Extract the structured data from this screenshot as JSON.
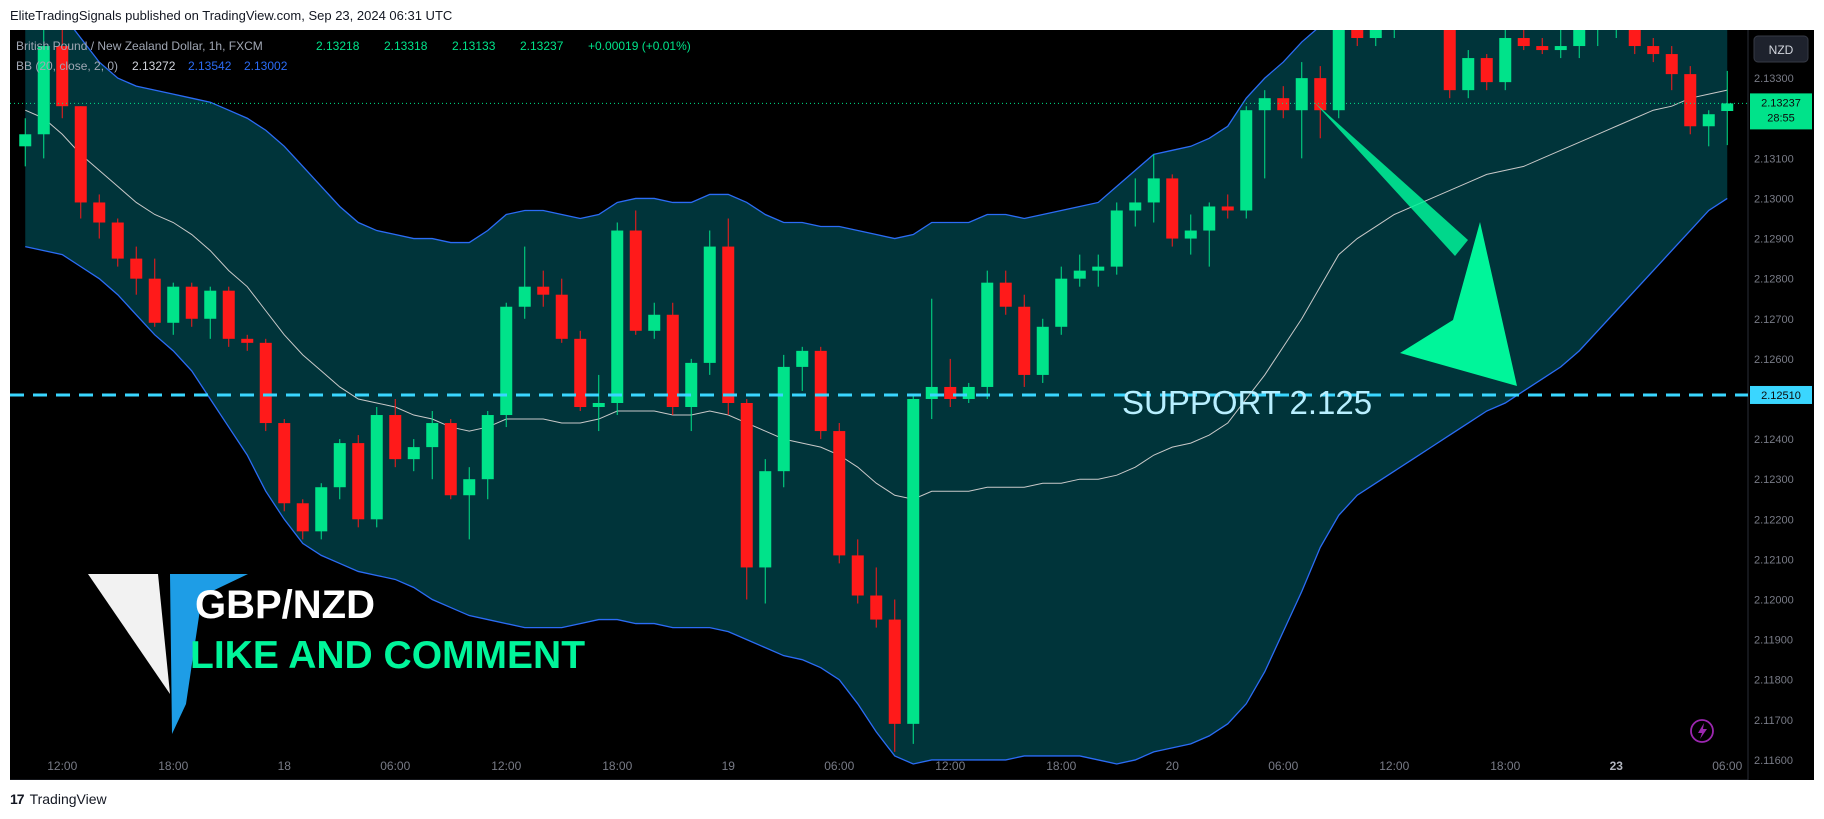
{
  "header": {
    "publish_line": "EliteTradingSignals published on TradingView.com, Sep 23, 2024 06:31 UTC"
  },
  "footer": {
    "brand": "TradingView"
  },
  "legend": {
    "symbol_line": "British Pound / New Zealand Dollar, 1h, FXCM",
    "o": "2.13218",
    "h": "2.13318",
    "l": "2.13133",
    "c": "2.13237",
    "change": "+0.00019 (+0.01%)",
    "bb_label": "BB (20, close, 2, 0)",
    "bb_basis": "2.13272",
    "bb_upper": "2.13542",
    "bb_lower": "2.13002"
  },
  "currency_button": "NZD",
  "price_tag": {
    "price": "2.13237",
    "countdown": "28:55"
  },
  "support_tag": "2.12510",
  "annotations": {
    "support_text": "SUPPORT  2.125",
    "pair_text": "GBP/NZD",
    "cta_text": "LIKE AND COMMENT"
  },
  "colors": {
    "background": "#000000",
    "band_fill": "#00343a",
    "band_line": "#2b6cf5",
    "basis_line": "#c9c9c9",
    "up": "#00e38a",
    "down": "#ff1a1a",
    "support": "#3ad6ff",
    "arrow": "#00f59a"
  },
  "chart_data": {
    "type": "candlestick",
    "title": "British Pound / New Zealand Dollar, 1h, FXCM",
    "xlabel": "",
    "ylabel": "",
    "ylim": [
      2.1155,
      2.1342
    ],
    "y_ticks": [
      "2.13300",
      "2.13200",
      "2.13100",
      "2.13000",
      "2.12900",
      "2.12800",
      "2.12700",
      "2.12600",
      "2.12500",
      "2.12400",
      "2.12300",
      "2.12200",
      "2.12100",
      "2.12000",
      "2.11900",
      "2.11800",
      "2.11700",
      "2.11600"
    ],
    "x_ticks": [
      {
        "i": 2,
        "label": "12:00"
      },
      {
        "i": 8,
        "label": "18:00"
      },
      {
        "i": 14,
        "label": "18"
      },
      {
        "i": 20,
        "label": "06:00"
      },
      {
        "i": 26,
        "label": "12:00"
      },
      {
        "i": 32,
        "label": "18:00"
      },
      {
        "i": 38,
        "label": "19"
      },
      {
        "i": 44,
        "label": "06:00"
      },
      {
        "i": 50,
        "label": "12:00"
      },
      {
        "i": 56,
        "label": "18:00"
      },
      {
        "i": 62,
        "label": "20"
      },
      {
        "i": 68,
        "label": "06:00"
      },
      {
        "i": 74,
        "label": "12:00"
      },
      {
        "i": 80,
        "label": "18:00"
      },
      {
        "i": 86,
        "label": "23"
      },
      {
        "i": 92,
        "label": "06:00"
      }
    ],
    "support_level": 2.1251,
    "current_price": 2.13237,
    "candles": [
      [
        2.1313,
        2.132,
        2.1308,
        2.1316
      ],
      [
        2.1316,
        2.1342,
        2.131,
        2.1338
      ],
      [
        2.1338,
        2.1342,
        2.132,
        2.1323
      ],
      [
        2.1323,
        2.1323,
        2.1295,
        2.1299
      ],
      [
        2.1299,
        2.1301,
        2.129,
        2.1294
      ],
      [
        2.1294,
        2.1295,
        2.1283,
        2.1285
      ],
      [
        2.1285,
        2.1288,
        2.1276,
        2.128
      ],
      [
        2.128,
        2.1285,
        2.1268,
        2.1269
      ],
      [
        2.1269,
        2.1279,
        2.1266,
        2.1278
      ],
      [
        2.1278,
        2.1279,
        2.1268,
        2.127
      ],
      [
        2.127,
        2.1278,
        2.1265,
        2.1277
      ],
      [
        2.1277,
        2.1278,
        2.1263,
        2.1265
      ],
      [
        2.1265,
        2.1266,
        2.1262,
        2.1264
      ],
      [
        2.1264,
        2.1265,
        2.1242,
        2.1244
      ],
      [
        2.1244,
        2.1245,
        2.1222,
        2.1224
      ],
      [
        2.1224,
        2.1225,
        2.1215,
        2.1217
      ],
      [
        2.1217,
        2.1229,
        2.1215,
        2.1228
      ],
      [
        2.1228,
        2.124,
        2.1225,
        2.1239
      ],
      [
        2.1239,
        2.1241,
        2.1218,
        2.122
      ],
      [
        2.122,
        2.1248,
        2.1218,
        2.1246
      ],
      [
        2.1246,
        2.125,
        2.1233,
        2.1235
      ],
      [
        2.1235,
        2.124,
        2.1232,
        2.1238
      ],
      [
        2.1238,
        2.1247,
        2.123,
        2.1244
      ],
      [
        2.1244,
        2.1245,
        2.1225,
        2.1226
      ],
      [
        2.1226,
        2.1233,
        2.1215,
        2.123
      ],
      [
        2.123,
        2.1247,
        2.1225,
        2.1246
      ],
      [
        2.1246,
        2.1274,
        2.1243,
        2.1273
      ],
      [
        2.1273,
        2.1288,
        2.127,
        2.1278
      ],
      [
        2.1278,
        2.1282,
        2.1273,
        2.1276
      ],
      [
        2.1276,
        2.128,
        2.1264,
        2.1265
      ],
      [
        2.1265,
        2.1267,
        2.1247,
        2.1248
      ],
      [
        2.1248,
        2.1256,
        2.1242,
        2.1249
      ],
      [
        2.1249,
        2.1294,
        2.1246,
        2.1292
      ],
      [
        2.1292,
        2.1297,
        2.1266,
        2.1267
      ],
      [
        2.1267,
        2.1274,
        2.1265,
        2.1271
      ],
      [
        2.1271,
        2.1274,
        2.1246,
        2.1248
      ],
      [
        2.1248,
        2.126,
        2.1242,
        2.1259
      ],
      [
        2.1259,
        2.1292,
        2.1256,
        2.1288
      ],
      [
        2.1288,
        2.1295,
        2.1246,
        2.1249
      ],
      [
        2.1249,
        2.125,
        2.12,
        2.1208
      ],
      [
        2.1208,
        2.1235,
        2.1199,
        2.1232
      ],
      [
        2.1232,
        2.1261,
        2.1228,
        2.1258
      ],
      [
        2.1258,
        2.1263,
        2.1252,
        2.1262
      ],
      [
        2.1262,
        2.1263,
        2.124,
        2.1242
      ],
      [
        2.1242,
        2.1244,
        2.1209,
        2.1211
      ],
      [
        2.1211,
        2.1215,
        2.1199,
        2.1201
      ],
      [
        2.1201,
        2.1208,
        2.1193,
        2.1195
      ],
      [
        2.1195,
        2.12,
        2.1162,
        2.1169
      ],
      [
        2.1169,
        2.1251,
        2.1164,
        2.125
      ],
      [
        2.125,
        2.1275,
        2.1245,
        2.1253
      ],
      [
        2.1253,
        2.126,
        2.1248,
        2.125
      ],
      [
        2.125,
        2.1254,
        2.1249,
        2.1253
      ],
      [
        2.1253,
        2.1282,
        2.125,
        2.1279
      ],
      [
        2.1279,
        2.1282,
        2.1271,
        2.1273
      ],
      [
        2.1273,
        2.1276,
        2.1253,
        2.1256
      ],
      [
        2.1256,
        2.127,
        2.1254,
        2.1268
      ],
      [
        2.1268,
        2.1283,
        2.1266,
        2.128
      ],
      [
        2.128,
        2.1286,
        2.1278,
        2.1282
      ],
      [
        2.1282,
        2.1286,
        2.1278,
        2.1283
      ],
      [
        2.1283,
        2.1299,
        2.1281,
        2.1297
      ],
      [
        2.1297,
        2.1305,
        2.1293,
        2.1299
      ],
      [
        2.1299,
        2.1311,
        2.1294,
        2.1305
      ],
      [
        2.1305,
        2.1306,
        2.1288,
        2.129
      ],
      [
        2.129,
        2.1296,
        2.1286,
        2.1292
      ],
      [
        2.1292,
        2.1299,
        2.1283,
        2.1298
      ],
      [
        2.1298,
        2.1301,
        2.1295,
        2.1297
      ],
      [
        2.1297,
        2.1323,
        2.1295,
        2.1322
      ],
      [
        2.1322,
        2.1327,
        2.1305,
        2.1325
      ],
      [
        2.1325,
        2.1328,
        2.132,
        2.1322
      ],
      [
        2.1322,
        2.1334,
        2.131,
        2.133
      ],
      [
        2.133,
        2.1333,
        2.1315,
        2.1322
      ],
      [
        2.1322,
        2.135,
        2.132,
        2.1346
      ],
      [
        2.1346,
        2.1352,
        2.1338,
        2.134
      ],
      [
        2.134,
        2.1352,
        2.1338,
        2.1348
      ],
      [
        2.1348,
        2.1355,
        2.134,
        2.135
      ],
      [
        2.135,
        2.1352,
        2.1346,
        2.1348
      ],
      [
        2.1348,
        2.135,
        2.1343,
        2.1346
      ],
      [
        2.1346,
        2.1348,
        2.1325,
        2.1327
      ],
      [
        2.1327,
        2.1337,
        2.1325,
        2.1335
      ],
      [
        2.1335,
        2.1336,
        2.1327,
        2.1329
      ],
      [
        2.1329,
        2.1342,
        2.1327,
        2.134
      ],
      [
        2.134,
        2.1345,
        2.1337,
        2.1338
      ],
      [
        2.1338,
        2.134,
        2.1336,
        2.1337
      ],
      [
        2.1337,
        2.1342,
        2.1335,
        2.1338
      ],
      [
        2.1338,
        2.1345,
        2.1335,
        2.1342
      ],
      [
        2.1342,
        2.1348,
        2.1338,
        2.1345
      ],
      [
        2.1345,
        2.135,
        2.134,
        2.1346
      ],
      [
        2.1346,
        2.1348,
        2.1336,
        2.1338
      ],
      [
        2.1338,
        2.134,
        2.1334,
        2.1336
      ],
      [
        2.1336,
        2.1338,
        2.1327,
        2.1331
      ],
      [
        2.1331,
        2.1333,
        2.1316,
        2.1318
      ],
      [
        2.1318,
        2.1322,
        2.1313,
        2.1321
      ],
      [
        2.13218,
        2.13318,
        2.13133,
        2.13237
      ]
    ],
    "bb_upper": [
      2.1356,
      2.1352,
      2.1346,
      2.134,
      2.1334,
      2.133,
      2.1328,
      2.1327,
      2.1326,
      2.1325,
      2.1324,
      2.1322,
      2.132,
      2.1317,
      2.1313,
      2.1308,
      2.1303,
      2.1298,
      2.1294,
      2.1292,
      2.1291,
      2.129,
      2.129,
      2.1289,
      2.1289,
      2.1292,
      2.1296,
      2.1297,
      2.1297,
      2.1296,
      2.1295,
      2.1296,
      2.1299,
      2.13,
      2.13,
      2.1299,
      2.1299,
      2.1301,
      2.1301,
      2.1299,
      2.1296,
      2.1294,
      2.1294,
      2.1293,
      2.1293,
      2.1292,
      2.1291,
      2.129,
      2.1291,
      2.1294,
      2.1294,
      2.1294,
      2.1296,
      2.1296,
      2.1295,
      2.1296,
      2.1297,
      2.1298,
      2.1299,
      2.1303,
      2.1307,
      2.1311,
      2.1312,
      2.1313,
      2.1315,
      2.1318,
      2.1325,
      2.133,
      2.1334,
      2.1339,
      2.1343,
      2.135,
      2.1353,
      2.1356,
      2.1358,
      2.1359,
      2.136,
      2.136,
      2.136,
      2.136,
      2.136,
      2.1359,
      2.1358,
      2.1357,
      2.1357,
      2.1357,
      2.1357,
      2.1356,
      2.1356,
      2.1355,
      2.1355,
      2.1355,
      2.1354
    ],
    "bb_lower": [
      2.1288,
      2.1287,
      2.1286,
      2.1283,
      2.128,
      2.1276,
      2.1271,
      2.1266,
      2.1262,
      2.1257,
      2.125,
      2.1243,
      2.1236,
      2.1227,
      2.122,
      2.1214,
      2.1211,
      2.1209,
      2.1207,
      2.1206,
      2.1205,
      2.1203,
      2.12,
      2.1198,
      2.1196,
      2.1195,
      2.1194,
      2.1193,
      2.1193,
      2.1193,
      2.1194,
      2.1195,
      2.1195,
      2.1194,
      2.1194,
      2.1193,
      2.1193,
      2.1193,
      2.1192,
      2.119,
      2.1188,
      2.1186,
      2.1185,
      2.1183,
      2.118,
      2.1174,
      2.1167,
      2.1161,
      2.1159,
      2.116,
      2.116,
      2.116,
      2.116,
      2.116,
      2.1161,
      2.1161,
      2.1161,
      2.1161,
      2.116,
      2.1159,
      2.116,
      2.1162,
      2.1163,
      2.1164,
      2.1166,
      2.1169,
      2.1174,
      2.1182,
      2.1192,
      2.1202,
      2.1213,
      2.1221,
      2.1226,
      2.1229,
      2.1232,
      2.1235,
      2.1238,
      2.1241,
      2.1244,
      2.1247,
      2.1249,
      2.1252,
      2.1255,
      2.1258,
      2.1262,
      2.1267,
      2.1272,
      2.1277,
      2.1282,
      2.1287,
      2.1292,
      2.1297,
      2.13
    ],
    "bb_basis": [
      2.1322,
      2.132,
      2.1316,
      2.1311,
      2.1307,
      2.1303,
      2.1299,
      2.1296,
      2.1294,
      2.1291,
      2.1287,
      2.1282,
      2.1278,
      2.1272,
      2.1266,
      2.1261,
      2.1257,
      2.1253,
      2.125,
      2.1249,
      2.1248,
      2.1246,
      2.1245,
      2.1243,
      2.1242,
      2.1243,
      2.1245,
      2.1245,
      2.1245,
      2.1244,
      2.1244,
      2.1245,
      2.1247,
      2.1247,
      2.1247,
      2.1246,
      2.1246,
      2.1247,
      2.1246,
      2.1244,
      2.1242,
      2.124,
      2.1239,
      2.1238,
      2.1236,
      2.1233,
      2.1229,
      2.1226,
      2.1225,
      2.1227,
      2.1227,
      2.1227,
      2.1228,
      2.1228,
      2.1228,
      2.1229,
      2.1229,
      2.123,
      2.123,
      2.1231,
      2.1233,
      2.1236,
      2.1238,
      2.1239,
      2.1241,
      2.1244,
      2.125,
      2.1256,
      2.1263,
      2.127,
      2.1278,
      2.1286,
      2.129,
      2.1293,
      2.1296,
      2.1298,
      2.13,
      2.1302,
      2.1304,
      2.1306,
      2.1307,
      2.1308,
      2.131,
      2.1312,
      2.1314,
      2.1316,
      2.1318,
      2.132,
      2.1322,
      2.1323,
      2.1325,
      2.1326,
      2.1327
    ]
  }
}
